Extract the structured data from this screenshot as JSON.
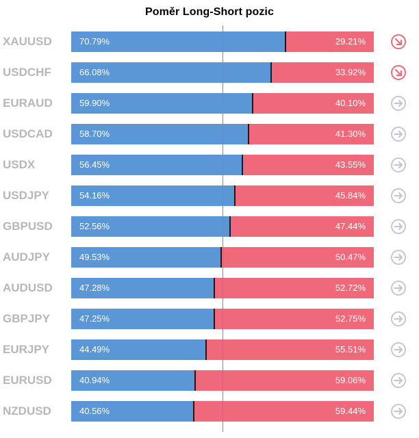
{
  "chart_data": {
    "type": "bar",
    "stacked": true,
    "orientation": "horizontal",
    "title": "Poměr Long-Short pozic",
    "xlim": [
      0,
      100
    ],
    "categories": [
      "XAUUSD",
      "USDCHF",
      "EURAUD",
      "USDCAD",
      "USDX",
      "USDJPY",
      "GBPUSD",
      "AUDJPY",
      "AUDUSD",
      "GBPJPY",
      "EURJPY",
      "EURUSD",
      "NZDUSD"
    ],
    "series": [
      {
        "values": [
          70.79,
          66.08,
          59.9,
          58.7,
          56.45,
          54.16,
          52.56,
          49.53,
          47.28,
          47.25,
          44.49,
          40.94,
          40.56
        ],
        "labels": [
          "70.79%",
          "66.08%",
          "59.90%",
          "58.70%",
          "56.45%",
          "54.16%",
          "52.56%",
          "49.53%",
          "47.28%",
          "47.25%",
          "44.49%",
          "40.94%",
          "40.56%"
        ],
        "color": "#5b96d7"
      },
      {
        "values": [
          29.21,
          33.92,
          40.1,
          41.3,
          43.55,
          45.84,
          47.44,
          50.47,
          52.72,
          52.75,
          55.51,
          59.06,
          59.44
        ],
        "labels": [
          "29.21%",
          "33.92%",
          "40.10%",
          "41.30%",
          "43.55%",
          "45.84%",
          "47.44%",
          "50.47%",
          "52.72%",
          "52.75%",
          "55.51%",
          "59.06%",
          "59.44%"
        ],
        "color": "#f0697b"
      }
    ],
    "reference_line": 50,
    "trend_icons": [
      "arrow-down-right-icon",
      "arrow-down-right-icon",
      "arrow-right-icon",
      "arrow-right-icon",
      "arrow-right-icon",
      "arrow-right-icon",
      "arrow-right-icon",
      "arrow-right-icon",
      "arrow-right-icon",
      "arrow-right-icon",
      "arrow-right-icon",
      "arrow-right-icon",
      "arrow-right-icon"
    ],
    "icon_colors": {
      "down-right": "#f0697b",
      "right": "#c2c8d2"
    },
    "label_color": "#b7b7b7",
    "grid": false,
    "legend": "none"
  }
}
